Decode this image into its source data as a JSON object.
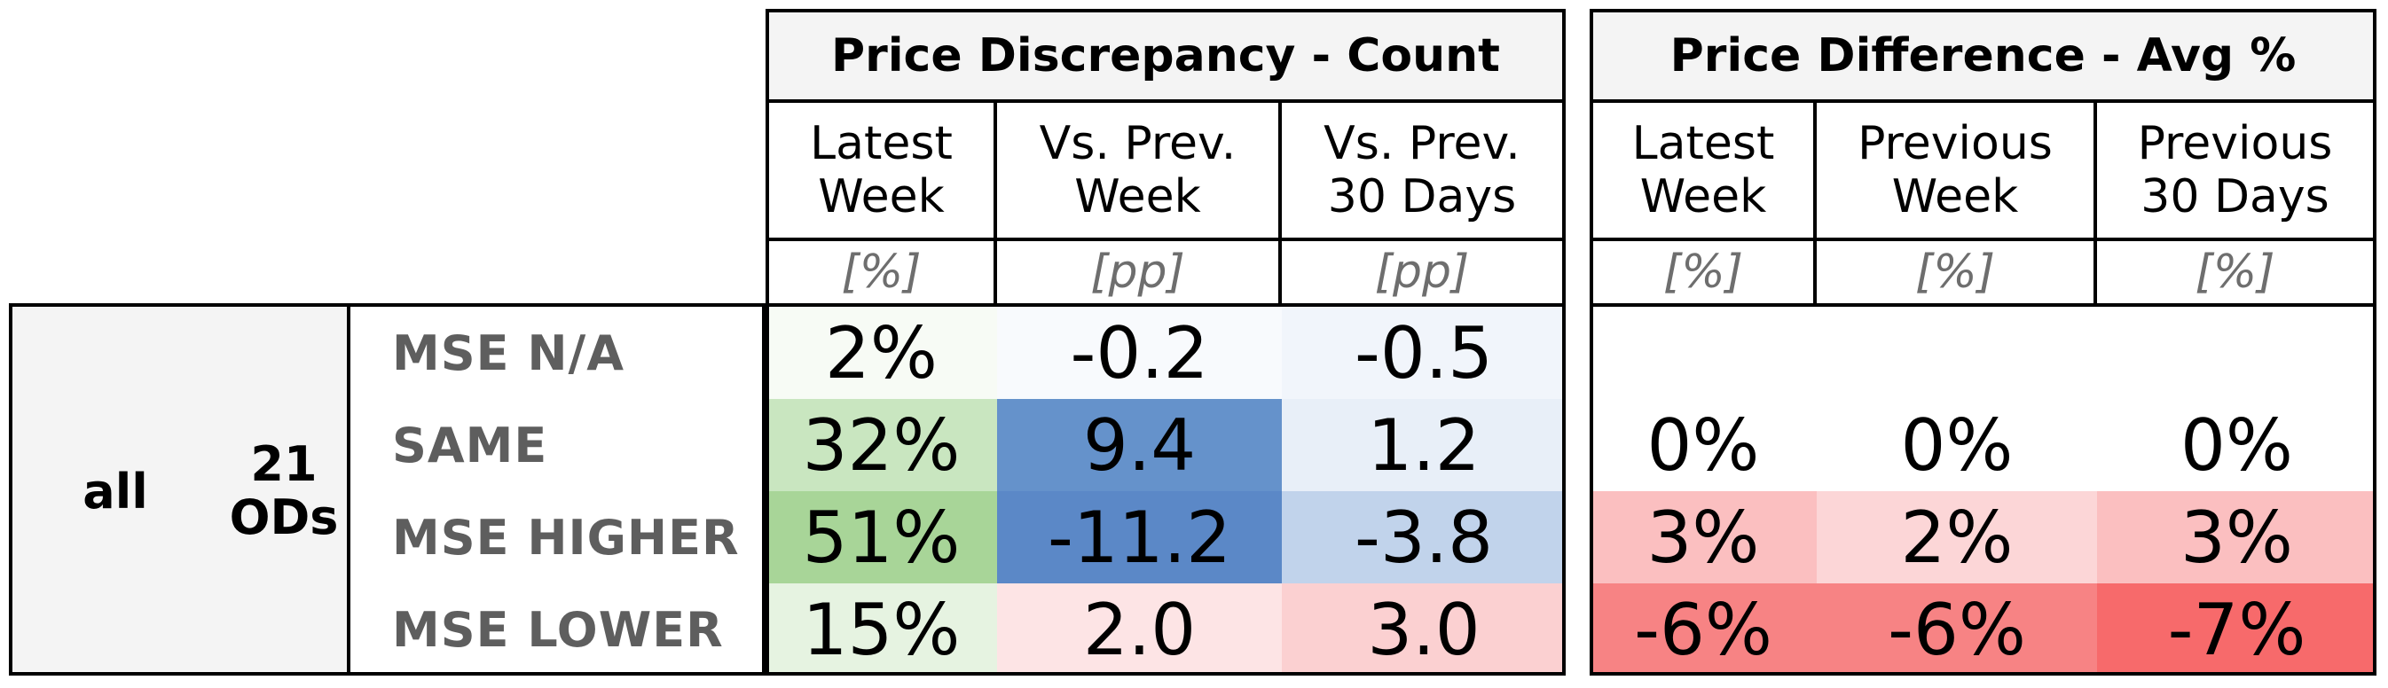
{
  "chart_data": {
    "type": "table",
    "groups": [
      {
        "title": "Price Discrepancy - Count",
        "columns": [
          {
            "header": "Latest\nWeek",
            "unit": "[%]"
          },
          {
            "header": "Vs. Prev.\nWeek",
            "unit": "[pp]"
          },
          {
            "header": "Vs. Prev.\n30 Days",
            "unit": "[pp]"
          }
        ]
      },
      {
        "title": "Price Difference - Avg %",
        "columns": [
          {
            "header": "Latest\nWeek",
            "unit": "[%]"
          },
          {
            "header": "Previous\nWeek",
            "unit": "[%]"
          },
          {
            "header": "Previous\n30 Days",
            "unit": "[%]"
          }
        ]
      }
    ],
    "segment": {
      "label": "all",
      "count_label": "21\nODs"
    },
    "rows": [
      {
        "label": "MSE N/A",
        "values": [
          "2%",
          "-0.2",
          "-0.5",
          "",
          "",
          ""
        ],
        "colors": [
          "#f7fbf5",
          "#f8fafd",
          "#f1f5fb",
          "#ffffff",
          "#ffffff",
          "#ffffff"
        ]
      },
      {
        "label": "SAME",
        "values": [
          "32%",
          "9.4",
          "1.2",
          "0%",
          "0%",
          "0%"
        ],
        "colors": [
          "#c9e6c0",
          "#6592cb",
          "#e8eff8",
          "#ffffff",
          "#ffffff",
          "#ffffff"
        ]
      },
      {
        "label": "MSE HIGHER",
        "values": [
          "51%",
          "-11.2",
          "-3.8",
          "3%",
          "2%",
          "3%"
        ],
        "colors": [
          "#a8d598",
          "#5b88c7",
          "#c1d3eb",
          "#fbbfc0",
          "#fcd6d7",
          "#fbbfc0"
        ]
      },
      {
        "label": "MSE LOWER",
        "values": [
          "15%",
          "2.0",
          "3.0",
          "-6%",
          "-6%",
          "-7%"
        ],
        "colors": [
          "#e6f3e1",
          "#fde4e5",
          "#fbd0d1",
          "#f78384",
          "#f78384",
          "#f76a6b"
        ]
      }
    ]
  }
}
